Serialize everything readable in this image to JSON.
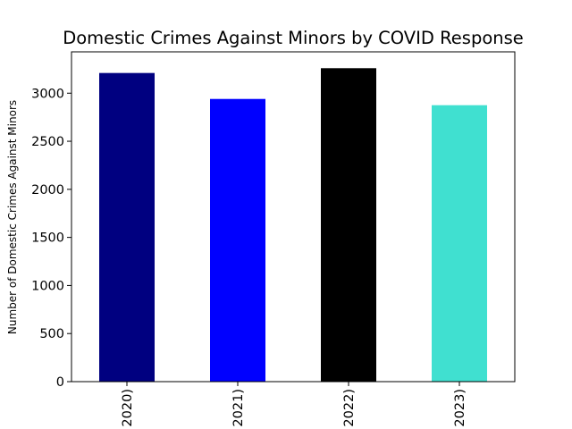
{
  "chart_data": {
    "type": "bar",
    "title": "Domestic Crimes Against Minors by COVID Response",
    "xlabel": "",
    "ylabel": "Number of Domestic Crimes Against Minors",
    "categories": [
      "2020)",
      "2021)",
      "2022)",
      "2023)"
    ],
    "values": [
      3210,
      2940,
      3260,
      2875
    ],
    "colors": [
      "#000080",
      "#0000ff",
      "#000000",
      "#40e0d0"
    ],
    "ylim": [
      0,
      3430
    ],
    "yticks": [
      0,
      500,
      1000,
      1500,
      2000,
      2500,
      3000
    ],
    "grid": false,
    "legend": "none"
  }
}
